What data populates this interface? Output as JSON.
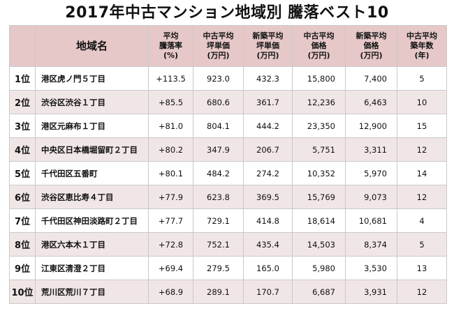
{
  "title": "2017年中古マンション地域別 騰落ベスト10",
  "headers": {
    "area": "地域名",
    "change": [
      "平均",
      "騰落率",
      "(%)"
    ],
    "used_unit": [
      "中古平均",
      "坪単価",
      "(万円)"
    ],
    "new_unit": [
      "新築平均",
      "坪単価",
      "(万円)"
    ],
    "used_price": [
      "中古平均",
      "価格",
      "(万円)"
    ],
    "new_price": [
      "新築平均",
      "価格",
      "(万円)"
    ],
    "age": [
      "中古平均",
      "築年数",
      "(年)"
    ]
  },
  "rows": [
    {
      "rank": "1位",
      "area": "港区虎ノ門５丁目",
      "change": "+113.5",
      "used_unit": "923.0",
      "new_unit": "432.3",
      "used_price": "15,800",
      "new_price": "7,400",
      "age": "5"
    },
    {
      "rank": "2位",
      "area": "渋谷区渋谷１丁目",
      "change": "+85.5",
      "used_unit": "680.6",
      "new_unit": "361.7",
      "used_price": "12,236",
      "new_price": "6,463",
      "age": "10"
    },
    {
      "rank": "3位",
      "area": "港区元麻布１丁目",
      "change": "+81.0",
      "used_unit": "804.1",
      "new_unit": "444.2",
      "used_price": "23,350",
      "new_price": "12,900",
      "age": "15"
    },
    {
      "rank": "4位",
      "area": "中央区日本橋堀留町２丁目",
      "change": "+80.2",
      "used_unit": "347.9",
      "new_unit": "206.7",
      "used_price": "5,751",
      "new_price": "3,311",
      "age": "12"
    },
    {
      "rank": "5位",
      "area": "千代田区五番町",
      "change": "+80.1",
      "used_unit": "484.2",
      "new_unit": "274.2",
      "used_price": "10,352",
      "new_price": "5,970",
      "age": "14"
    },
    {
      "rank": "6位",
      "area": "渋谷区恵比寿４丁目",
      "change": "+77.9",
      "used_unit": "623.8",
      "new_unit": "369.5",
      "used_price": "15,769",
      "new_price": "9,073",
      "age": "12"
    },
    {
      "rank": "7位",
      "area": "千代田区神田淡路町２丁目",
      "change": "+77.7",
      "used_unit": "729.1",
      "new_unit": "414.8",
      "used_price": "18,614",
      "new_price": "10,681",
      "age": "4"
    },
    {
      "rank": "8位",
      "area": "港区六本木１丁目",
      "change": "+72.8",
      "used_unit": "752.1",
      "new_unit": "435.4",
      "used_price": "14,503",
      "new_price": "8,374",
      "age": "5"
    },
    {
      "rank": "9位",
      "area": "江東区清澄２丁目",
      "change": "+69.4",
      "used_unit": "279.5",
      "new_unit": "165.0",
      "used_price": "5,980",
      "new_price": "3,530",
      "age": "13"
    },
    {
      "rank": "10位",
      "area": "荒川区荒川７丁目",
      "change": "+68.9",
      "used_unit": "289.1",
      "new_unit": "170.7",
      "used_price": "6,687",
      "new_price": "3,931",
      "age": "12"
    }
  ]
}
